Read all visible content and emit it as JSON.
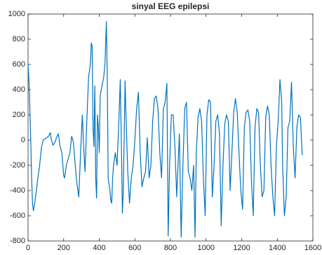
{
  "chart_data": {
    "type": "line",
    "title": "sinyal EEG epilepsi",
    "color": "#0072bd",
    "x": [
      0,
      5,
      10,
      15,
      20,
      25,
      30,
      35,
      45,
      55,
      65,
      75,
      85,
      95,
      105,
      115,
      125,
      130,
      140,
      150,
      160,
      170,
      180,
      190,
      200,
      205,
      215,
      225,
      235,
      245,
      255,
      265,
      275,
      285,
      295,
      305,
      312,
      320,
      330,
      340,
      350,
      355,
      360,
      365,
      370,
      375,
      380,
      385,
      390,
      395,
      400,
      405,
      415,
      425,
      432,
      440,
      445,
      450,
      455,
      460,
      465,
      470,
      475,
      480,
      490,
      500,
      510,
      518,
      525,
      530,
      535,
      545,
      550,
      560,
      570,
      580,
      590,
      600,
      610,
      620,
      630,
      640,
      650,
      660,
      670,
      680,
      690,
      700,
      710,
      720,
      730,
      740,
      750,
      760,
      770,
      780,
      787,
      795,
      805,
      815,
      825,
      835,
      850,
      860,
      870,
      880,
      890,
      900,
      910,
      920,
      930,
      938,
      945,
      955,
      965,
      975,
      985,
      995,
      1005,
      1015,
      1025,
      1035,
      1045,
      1055,
      1065,
      1075,
      1085,
      1095,
      1105,
      1115,
      1125,
      1135,
      1145,
      1155,
      1165,
      1175,
      1185,
      1195,
      1205,
      1215,
      1225,
      1235,
      1245,
      1255,
      1265,
      1275,
      1285,
      1295,
      1305,
      1315,
      1325,
      1335,
      1345,
      1355,
      1365,
      1375,
      1385,
      1395,
      1405,
      1415,
      1425,
      1430,
      1440,
      1450,
      1460,
      1470,
      1480,
      1490,
      1500,
      1510,
      1520,
      1530,
      1540
    ],
    "values": [
      600,
      480,
      250,
      0,
      -300,
      -500,
      -560,
      -520,
      -420,
      -300,
      -200,
      -60,
      0,
      10,
      20,
      30,
      60,
      10,
      -40,
      -20,
      20,
      50,
      -50,
      -100,
      -280,
      -300,
      -200,
      -150,
      -100,
      30,
      -20,
      -200,
      -350,
      -450,
      -100,
      200,
      -50,
      -250,
      150,
      500,
      600,
      770,
      750,
      100,
      -50,
      430,
      -300,
      -460,
      200,
      100,
      -100,
      350,
      430,
      500,
      600,
      940,
      500,
      -300,
      -350,
      -400,
      -480,
      -500,
      -300,
      -200,
      -100,
      -200,
      150,
      480,
      -100,
      -580,
      -400,
      470,
      200,
      -250,
      -500,
      -300,
      -200,
      0,
      250,
      380,
      -100,
      -370,
      -300,
      -250,
      20,
      -300,
      -200,
      150,
      330,
      350,
      250,
      -100,
      -300,
      250,
      300,
      450,
      -760,
      -200,
      200,
      200,
      -50,
      -450,
      50,
      -770,
      -200,
      250,
      300,
      -250,
      -300,
      -400,
      -200,
      -770,
      -100,
      180,
      250,
      150,
      -300,
      -600,
      200,
      320,
      300,
      -450,
      -200,
      150,
      200,
      60,
      -680,
      -200,
      130,
      200,
      150,
      -400,
      -100,
      220,
      330,
      220,
      -100,
      -400,
      -550,
      100,
      220,
      240,
      150,
      -330,
      -600,
      100,
      250,
      220,
      -200,
      -450,
      -400,
      180,
      270,
      200,
      -200,
      -450,
      -600,
      -50,
      150,
      480,
      300,
      -200,
      -600,
      -450,
      100,
      150,
      460,
      -50,
      -300,
      100,
      200,
      180,
      -120
    ],
    "xlim": [
      0,
      1600
    ],
    "xticks": [
      0,
      200,
      400,
      600,
      800,
      1000,
      1200,
      1400,
      1600
    ],
    "ylim": [
      -800,
      1000
    ],
    "yticks": [
      -800,
      -600,
      -400,
      -200,
      0,
      200,
      400,
      600,
      800,
      1000
    ]
  }
}
